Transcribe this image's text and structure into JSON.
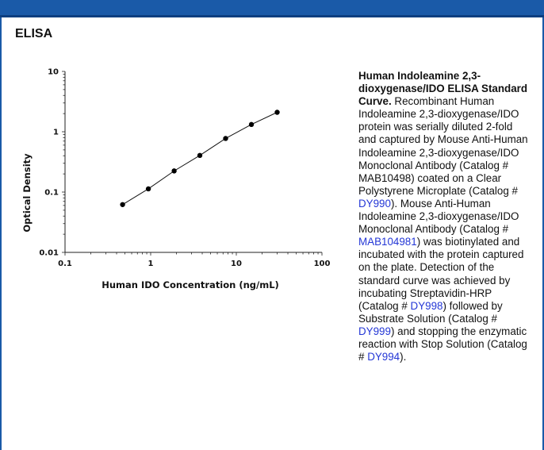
{
  "section_title": "ELISA",
  "caption": {
    "title": "Human Indoleamine 2,3-dioxygenase/IDO ELISA Standard Curve.",
    "text_1": "Recombinant Human Indoleamine 2,3-dioxygenase/IDO protein was serially diluted 2-fold and captured by Mouse Anti-Human Indoleamine 2,3-dioxygenase/IDO Monoclonal Antibody (Catalog # MAB10498) coated on a Clear Polystyrene Microplate (Catalog #",
    "link_1": "DY990",
    "text_2": "). Mouse Anti-Human Indoleamine 2,3-dioxygenase/IDO Monoclonal Antibody (Catalog #",
    "link_2": "MAB104981",
    "text_3": ") was biotinylated and incubated with the protein captured on the plate. Detection of the standard curve was achieved by incubating Streptavidin-HRP (Catalog #",
    "link_3": "DY998",
    "text_4": ") followed by Substrate Solution (Catalog #",
    "link_4": "DY999",
    "text_5": ") and stopping the enzymatic reaction with Stop Solution (Catalog #",
    "link_5": "DY994",
    "text_6": ")."
  },
  "chart_data": {
    "type": "scatter",
    "xlabel": "Human IDO Concentration (ng/mL)",
    "ylabel": "Optical Density",
    "xscale": "log",
    "yscale": "log",
    "xlim": [
      0.1,
      100
    ],
    "ylim": [
      0.01,
      10
    ],
    "xticks": [
      0.1,
      1,
      10,
      100
    ],
    "xtick_labels": [
      "0.1",
      "1",
      "10",
      "100"
    ],
    "yticks": [
      0.01,
      0.1,
      1,
      10
    ],
    "ytick_labels": [
      "0.01",
      "0.1",
      "1",
      "10"
    ],
    "grid": false,
    "series": [
      {
        "x": [
          0.47,
          0.94,
          1.88,
          3.75,
          7.5,
          15,
          30
        ],
        "y": [
          0.062,
          0.113,
          0.224,
          0.405,
          0.774,
          1.32,
          2.1
        ]
      }
    ],
    "fit_line": true
  }
}
